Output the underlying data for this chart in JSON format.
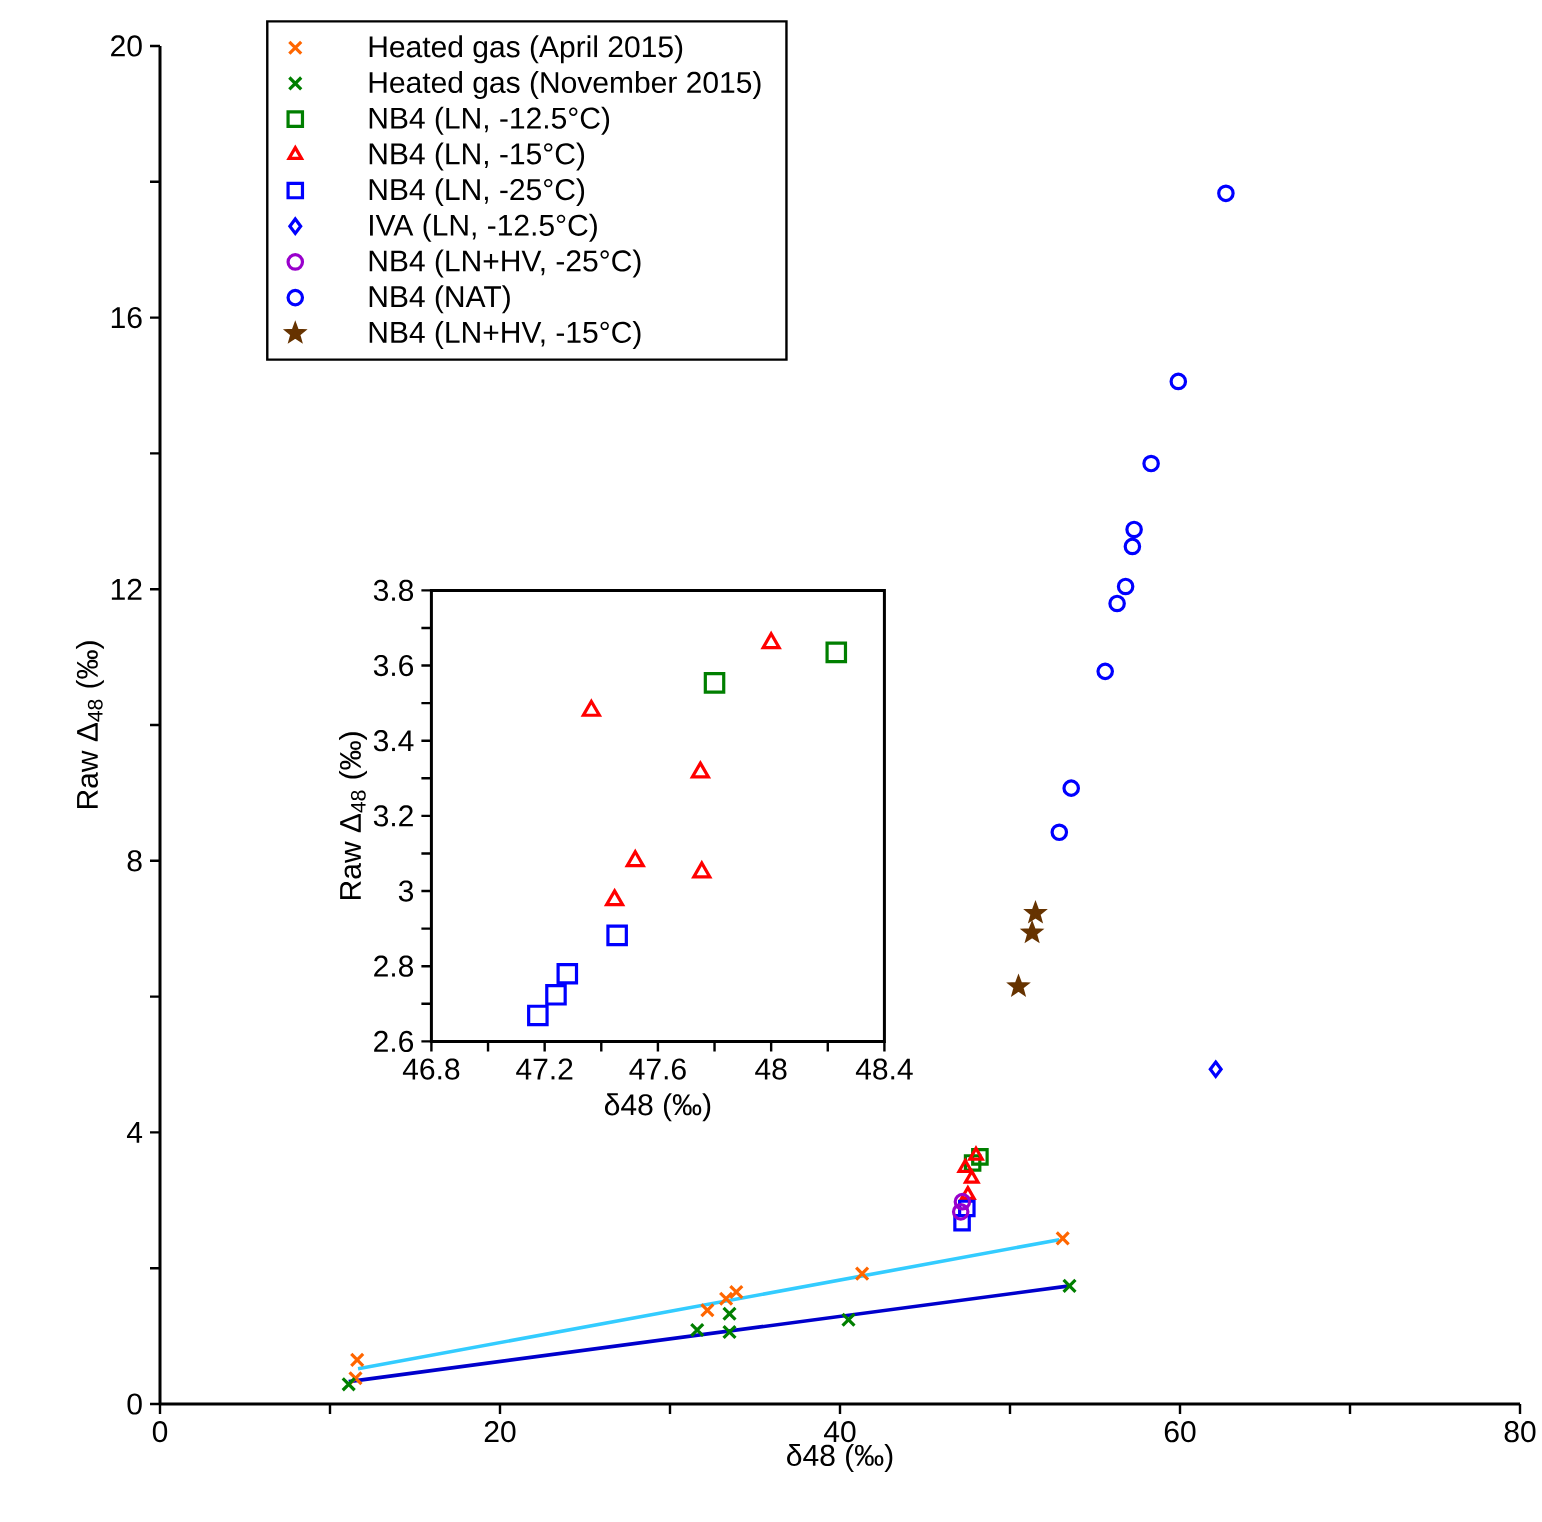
{
  "chart_data": [
    {
      "type": "scatter",
      "xlabel": "δ48 (‰)",
      "ylabel": "Raw Δ$_{48}$ (‰)",
      "xlim": [
        0,
        80
      ],
      "ylim": [
        0,
        20
      ],
      "xticks": [
        0,
        {
          "value": 10,
          "label": null
        },
        20,
        {
          "value": 30,
          "label": null
        },
        40,
        {
          "value": 50,
          "label": null
        },
        60,
        {
          "value": 70,
          "label": null
        },
        80
      ],
      "yticks": [
        0,
        {
          "value": 2,
          "label": null
        },
        4,
        {
          "value": 6,
          "label": null
        },
        8,
        {
          "value": 10,
          "label": null
        },
        12,
        {
          "value": 14,
          "label": null
        },
        16,
        {
          "value": 18,
          "label": null
        },
        20
      ],
      "legend": "top left",
      "series": [
        {
          "name": "Heated gas (April 2015)",
          "color": "#ff6600",
          "marker": "cross",
          "x": [
            11.6,
            11.5,
            32.2,
            33.3,
            33.9,
            41.3,
            53.1
          ],
          "values": [
            0.65,
            0.38,
            1.38,
            1.55,
            1.65,
            1.92,
            2.44
          ]
        },
        {
          "name": "Heated gas (November 2015)",
          "color": "#007f00",
          "marker": "cross",
          "x": [
            11.1,
            31.6,
            33.5,
            33.5,
            40.5,
            53.5
          ],
          "values": [
            0.29,
            1.09,
            1.33,
            1.06,
            1.24,
            1.74
          ]
        },
        {
          "name": "NB4 (LN, -12.5°C)",
          "color": "#007f00",
          "marker": "square",
          "x": [
            47.8,
            48.23
          ],
          "values": [
            3.55,
            3.64
          ]
        },
        {
          "name": "NB4 (LN, -15°C)",
          "color": "#ff0000",
          "marker": "triangle",
          "x": [
            48.0,
            47.37,
            47.75,
            47.52
          ],
          "values": [
            3.66,
            3.48,
            3.32,
            3.08
          ]
        },
        {
          "name": "NB4 (LN, -25°C)",
          "color": "#0000ff",
          "marker": "square",
          "x": [
            47.46,
            47.18
          ],
          "values": [
            2.88,
            2.67
          ]
        },
        {
          "name": "IVA (LN, -12.5°C)",
          "color": "#0000ff",
          "marker": "diamond",
          "x": [
            62.1
          ],
          "values": [
            4.93
          ]
        },
        {
          "name": "NB4 (LN+HV, -25°C)",
          "color": "#9900cc",
          "marker": "circle",
          "x": [
            47.1,
            47.2
          ],
          "values": [
            2.83,
            2.98
          ]
        },
        {
          "name": "NB4 (NAT)",
          "color": "#0000ff",
          "marker": "circle",
          "x": [
            62.7,
            59.9,
            58.3,
            57.3,
            57.2,
            56.8,
            56.3,
            55.6,
            53.6,
            52.9
          ],
          "values": [
            17.83,
            15.06,
            13.85,
            12.88,
            12.63,
            12.04,
            11.79,
            10.79,
            9.07,
            8.42
          ]
        },
        {
          "name": "NB4 (LN+HV, -15°C)",
          "color": "#663300",
          "marker": "star",
          "x": [
            51.5,
            51.3,
            50.5
          ],
          "values": [
            7.23,
            6.94,
            6.15
          ]
        },
        {
          "type": "line",
          "color": "#33ccff",
          "line_style": "solid",
          "x": [
            11.65,
            52.9
          ],
          "values": [
            0.52,
            2.42
          ]
        },
        {
          "type": "line",
          "color": "#0000cc",
          "line_style": "solid",
          "x": [
            11.1,
            53.5
          ],
          "values": [
            0.33,
            1.74
          ]
        }
      ]
    },
    {
      "type": "scatter",
      "xlabel": "δ48 (‰)",
      "ylabel": "Raw Δ$_{48}$ (‰)",
      "xlim": [
        46.8,
        48.4
      ],
      "ylim": [
        2.6,
        3.8
      ],
      "xticks": [
        46.8,
        {
          "value": 47.0,
          "label": null
        },
        47.2,
        {
          "value": 47.4,
          "label": null
        },
        47.6,
        {
          "value": 47.8,
          "label": null
        },
        48,
        {
          "value": 48.2,
          "label": null
        },
        48.4
      ],
      "yticks": [
        2.6,
        {
          "value": 2.7,
          "label": null
        },
        2.8,
        {
          "value": 2.9,
          "label": null
        },
        3,
        {
          "value": 3.1,
          "label": null
        },
        3.2,
        {
          "value": 3.3,
          "label": null
        },
        3.4,
        {
          "value": 3.5,
          "label": null
        },
        3.6,
        {
          "value": 3.7,
          "label": null
        },
        3.8
      ],
      "series": [
        {
          "color": "#007f00",
          "marker": "square",
          "x": [
            47.8,
            48.23
          ],
          "values": [
            3.554,
            3.635
          ]
        },
        {
          "color": "#ff0000",
          "marker": "triangle",
          "x": [
            48.0,
            47.365,
            47.75,
            47.52,
            47.755,
            47.447
          ],
          "values": [
            3.66,
            3.48,
            3.316,
            3.08,
            3.05,
            2.976
          ]
        },
        {
          "color": "#0000ff",
          "marker": "square",
          "x": [
            47.456,
            47.28,
            47.24,
            47.176
          ],
          "values": [
            2.882,
            2.78,
            2.724,
            2.669
          ]
        }
      ]
    }
  ]
}
